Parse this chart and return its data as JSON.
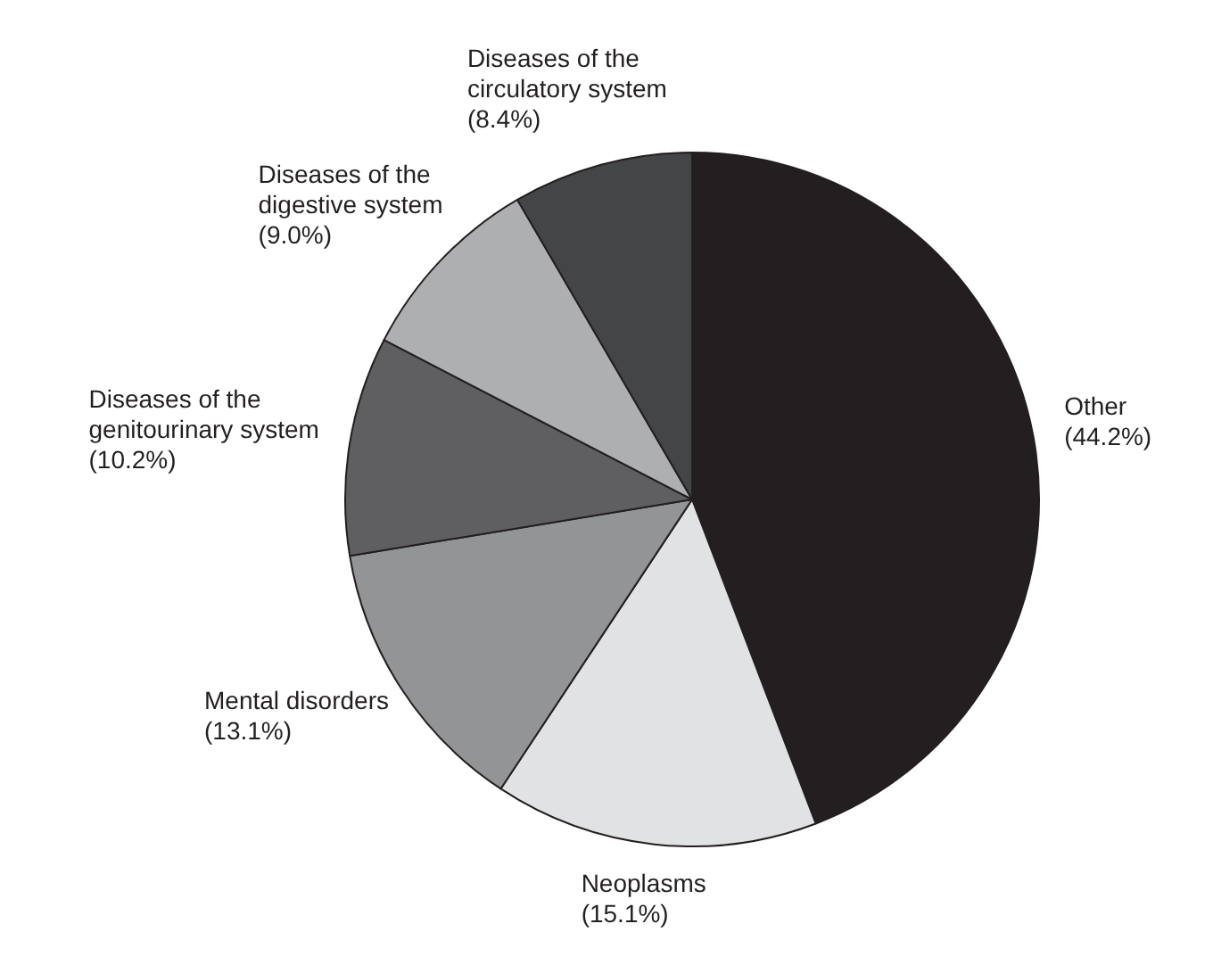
{
  "chart_data": {
    "type": "pie",
    "categories": [
      "Other",
      "Neoplasms",
      "Mental disorders",
      "Diseases of the genitourinary system",
      "Diseases of the digestive system",
      "Diseases of the circulatory system"
    ],
    "values": [
      44.2,
      15.1,
      13.1,
      10.2,
      9.0,
      8.4
    ],
    "colors": [
      "#231f20",
      "#e1e2e4",
      "#939496",
      "#5f5f61",
      "#aeafb1",
      "#444547"
    ],
    "value_labels": [
      "(44.2%)",
      "(15.1%)",
      "(13.1%)",
      "(10.2%)",
      "(9.0%)",
      "(8.4%)"
    ],
    "legend": false
  }
}
